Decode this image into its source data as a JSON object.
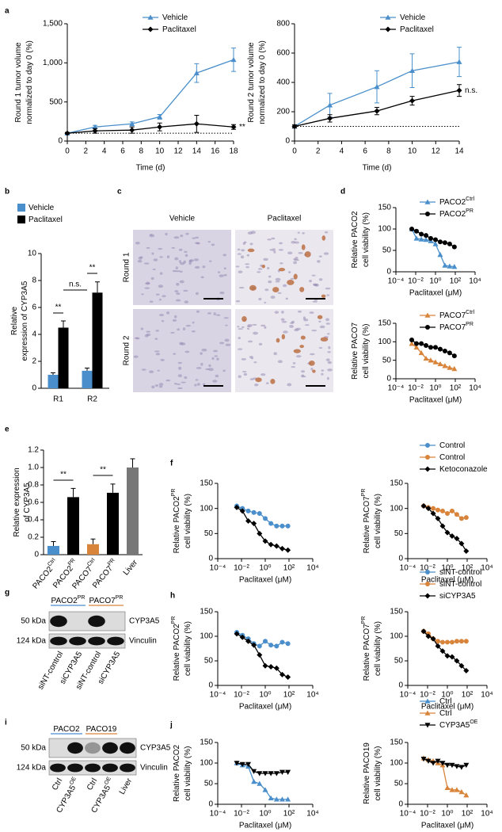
{
  "chart_data": [
    {
      "panel": "a",
      "type": "line",
      "x": [
        0,
        3,
        7,
        10,
        14,
        18
      ],
      "series": [
        {
          "color": "#4a8fcb",
          "marker": "triangle",
          "values": [
            100,
            180,
            220,
            310,
            870,
            1040
          ],
          "errors": [
            10,
            20,
            25,
            30,
            120,
            150
          ]
        },
        {
          "color": "#000000",
          "marker": "diamond",
          "values": [
            100,
            130,
            140,
            180,
            220,
            180
          ],
          "errors": [
            10,
            30,
            40,
            50,
            110,
            30
          ]
        }
      ],
      "legend": [
        {
          "name": "Vehicle",
          "color": "#4a8fcb",
          "marker": "triangle"
        },
        {
          "name": "Paclitaxel",
          "color": "#000000",
          "marker": "diamond"
        }
      ],
      "xlabel": "Time (d)",
      "ylabel": [
        "Round 1 tumor volume",
        "normalized to day 0 (%)"
      ],
      "xlim": [
        0,
        18
      ],
      "xticks": [
        0,
        2,
        4,
        6,
        8,
        10,
        12,
        14,
        16,
        18
      ],
      "ylim": [
        0,
        1500
      ],
      "yticks": [
        0,
        500,
        {
          "value": 1000,
          "label": "1,000"
        },
        {
          "value": 1500,
          "label": "1,500"
        }
      ],
      "reference_line": 100,
      "annotation": "**"
    },
    {
      "type": "line",
      "x": [
        0,
        3,
        7,
        10,
        14
      ],
      "series": [
        {
          "color": "#4a8fcb",
          "marker": "triangle",
          "values": [
            100,
            245,
            370,
            480,
            540
          ],
          "errors": [
            10,
            80,
            110,
            115,
            100
          ]
        },
        {
          "color": "#000000",
          "marker": "diamond",
          "values": [
            100,
            155,
            205,
            275,
            345
          ],
          "errors": [
            10,
            25,
            25,
            30,
            40
          ]
        }
      ],
      "legend": [
        {
          "name": "Vehicle",
          "color": "#4a8fcb",
          "marker": "triangle"
        },
        {
          "name": "Paclitaxel",
          "color": "#000000",
          "marker": "diamond"
        }
      ],
      "xlabel": "Time (d)",
      "ylabel": [
        "Round 2 tumor volume",
        "normalized to day 0 (%)"
      ],
      "xlim": [
        0,
        14
      ],
      "xticks": [
        0,
        2,
        4,
        6,
        8,
        10,
        12,
        14
      ],
      "ylim": [
        0,
        800
      ],
      "yticks": [
        0,
        200,
        400,
        600,
        800
      ],
      "reference_line": 100,
      "annotation": "n.s."
    },
    {
      "panel": "b",
      "type": "bar",
      "categories": [
        "R1",
        "R2"
      ],
      "series": [
        {
          "color": "#4a8fcb",
          "values": [
            1.0,
            1.3
          ],
          "errors": [
            0.15,
            0.2
          ]
        },
        {
          "color": "#000000",
          "values": [
            4.5,
            7.1
          ],
          "errors": [
            0.5,
            0.8
          ]
        }
      ],
      "legend": [
        {
          "name": "Vehicle",
          "color": "#4a8fcb"
        },
        {
          "name": "Paclitaxel",
          "color": "#000000"
        }
      ],
      "ylabel": [
        "Relative",
        "expression of CYP3A5"
      ],
      "ylim": [
        0,
        10
      ],
      "yticks": [
        0,
        2,
        4,
        6,
        8,
        10
      ],
      "annotations": [
        "**",
        "n.s.",
        "**"
      ]
    },
    {
      "panel": "d",
      "type": "line",
      "logx": true,
      "x": [
        0.004,
        0.012,
        0.037,
        0.11,
        0.33,
        1,
        3,
        9,
        27,
        81
      ],
      "series": [
        {
          "color": "#4a8fcb",
          "marker": "triangle",
          "values": [
            100,
            78,
            76,
            75,
            72,
            65,
            40,
            15,
            13,
            12
          ]
        },
        {
          "color": "#000000",
          "marker": "circle",
          "values": [
            100,
            95,
            88,
            85,
            78,
            75,
            70,
            68,
            65,
            58
          ]
        }
      ],
      "legend": [
        {
          "name": "PACO2",
          "sup": "Ctrl",
          "color": "#4a8fcb",
          "marker": "triangle"
        },
        {
          "name": "PACO2",
          "sup": "PR",
          "color": "#000000",
          "marker": "circle"
        }
      ],
      "xlabel": "Paclitaxel (μM)",
      "ylabel": [
        "Relative PACO2",
        "cell viability (%)"
      ],
      "xlim": [
        0.0001,
        10000
      ],
      "xticks": [
        {
          "value": 0.0001,
          "label": "10⁻⁴"
        },
        {
          "value": 0.01,
          "label": "10⁻²"
        },
        {
          "value": 1,
          "label": "10⁰"
        },
        {
          "value": 100,
          "label": "10²"
        },
        {
          "value": 10000,
          "label": "10⁴"
        }
      ],
      "ylim": [
        0,
        150
      ],
      "yticks": [
        0,
        50,
        100,
        150
      ]
    },
    {
      "type": "line",
      "logx": true,
      "x": [
        0.004,
        0.012,
        0.037,
        0.11,
        0.33,
        1,
        3,
        9,
        27,
        81
      ],
      "series": [
        {
          "color": "#d9843b",
          "marker": "triangle",
          "values": [
            95,
            85,
            70,
            55,
            50,
            45,
            40,
            35,
            30,
            27
          ]
        },
        {
          "color": "#000000",
          "marker": "circle",
          "values": [
            105,
            95,
            95,
            90,
            85,
            85,
            80,
            75,
            70,
            62
          ]
        }
      ],
      "legend": [
        {
          "name": "PACO7",
          "sup": "Ctrl",
          "color": "#d9843b",
          "marker": "triangle"
        },
        {
          "name": "PACO7",
          "sup": "PR",
          "color": "#000000",
          "marker": "circle"
        }
      ],
      "xlabel": "Paclitaxel (μM)",
      "ylabel": [
        "Relative PACO7",
        "cell viability (%)"
      ],
      "xlim": [
        0.0001,
        10000
      ],
      "xticks": [
        {
          "value": 0.0001,
          "label": "10⁻⁴"
        },
        {
          "value": 0.01,
          "label": "10⁻²"
        },
        {
          "value": 1,
          "label": "10⁰"
        },
        {
          "value": 100,
          "label": "10²"
        },
        {
          "value": 10000,
          "label": "10⁴"
        }
      ],
      "ylim": [
        0,
        150
      ],
      "yticks": [
        0,
        50,
        100,
        150
      ]
    },
    {
      "panel": "e",
      "type": "bar",
      "categories": [
        "PACO2",
        "PACO2",
        "PACO7",
        "PACO7",
        "Liver"
      ],
      "category_sups": [
        "Ctrl",
        "PR",
        "Ctrl",
        "PR",
        null
      ],
      "values": [
        0.1,
        0.66,
        0.12,
        0.71,
        1.0
      ],
      "errors": [
        0.05,
        0.1,
        0.06,
        0.1,
        0.1
      ],
      "colors": [
        "#4a8fcb",
        "#000000",
        "#d9843b",
        "#000000",
        "#777777"
      ],
      "ylabel": [
        "Relative expression",
        "of CYP3A5"
      ],
      "ylim": [
        0,
        1.2
      ],
      "yticks": [
        0,
        0.2,
        0.4,
        0.6,
        0.8,
        {
          "value": 1,
          "label": "1.0"
        },
        1.2
      ],
      "annotations": [
        "**",
        "**"
      ]
    },
    {
      "panel": "f",
      "type": "line",
      "logx": true,
      "x": [
        0.004,
        0.012,
        0.037,
        0.11,
        0.33,
        1,
        3,
        9,
        27,
        81
      ],
      "series": [
        {
          "color": "#4a8fcb",
          "marker": "circle",
          "values": [
            105,
            100,
            95,
            92,
            90,
            80,
            70,
            65,
            65,
            65
          ]
        },
        {
          "color": "#000000",
          "marker": "diamond",
          "values": [
            102,
            95,
            75,
            70,
            50,
            35,
            28,
            25,
            20,
            17
          ]
        }
      ],
      "xlabel": "Paclitaxel (μM)",
      "ylabel": [
        "Relative PACO2",
        "cell viability (%)"
      ],
      "ylabel_sup": "PR",
      "xlim": [
        0.0001,
        10000
      ],
      "xticks": [
        {
          "value": 0.0001,
          "label": "10⁻⁴"
        },
        {
          "value": 0.01,
          "label": "10⁻²"
        },
        {
          "value": 1,
          "label": "10⁰"
        },
        {
          "value": 100,
          "label": "10²"
        },
        {
          "value": 10000,
          "label": "10⁴"
        }
      ],
      "ylim": [
        0,
        150
      ],
      "yticks": [
        0,
        50,
        100,
        150
      ]
    },
    {
      "type": "line",
      "logx": true,
      "x": [
        0.004,
        0.012,
        0.037,
        0.11,
        0.33,
        1,
        3,
        9,
        27,
        81
      ],
      "series": [
        {
          "color": "#d9843b",
          "marker": "circle",
          "values": [
            105,
            102,
            100,
            97,
            95,
            90,
            95,
            88,
            80,
            82
          ]
        },
        {
          "color": "#000000",
          "marker": "diamond",
          "values": [
            105,
            100,
            90,
            80,
            65,
            52,
            45,
            40,
            30,
            15
          ]
        }
      ],
      "legend": [
        {
          "name": "Control",
          "color": "#4a8fcb",
          "marker": "circle"
        },
        {
          "name": "Control",
          "color": "#d9843b",
          "marker": "circle"
        },
        {
          "name": "Ketoconazole",
          "color": "#000000",
          "marker": "diamond"
        }
      ],
      "xlabel": "Paclitaxel (μM)",
      "ylabel": [
        "Relative PACO7",
        "cell viability (%)"
      ],
      "ylabel_sup": "PR",
      "xlim": [
        0.0001,
        10000
      ],
      "xticks": [
        {
          "value": 0.0001,
          "label": "10⁻⁴"
        },
        {
          "value": 0.01,
          "label": "10⁻²"
        },
        {
          "value": 1,
          "label": "10⁰"
        },
        {
          "value": 100,
          "label": "10²"
        },
        {
          "value": 10000,
          "label": "10⁴"
        }
      ],
      "ylim": [
        0,
        150
      ],
      "yticks": [
        0,
        50,
        100,
        150
      ]
    },
    {
      "panel": "h",
      "type": "line",
      "logx": true,
      "x": [
        0.004,
        0.012,
        0.037,
        0.11,
        0.33,
        1,
        3,
        9,
        27,
        81
      ],
      "series": [
        {
          "color": "#4a8fcb",
          "marker": "circle",
          "values": [
            108,
            102,
            95,
            85,
            80,
            90,
            82,
            80,
            88,
            85
          ]
        },
        {
          "color": "#000000",
          "marker": "diamond",
          "values": [
            105,
            98,
            90,
            82,
            62,
            40,
            38,
            35,
            22,
            17
          ]
        }
      ],
      "xlabel": "Paclitaxel (μM)",
      "ylabel": [
        "Relative PACO2",
        "cell viability (%)"
      ],
      "ylabel_sup": "PR",
      "xlim": [
        0.0001,
        10000
      ],
      "xticks": [
        {
          "value": 0.0001,
          "label": "10⁻⁴"
        },
        {
          "value": 0.01,
          "label": "10⁻²"
        },
        {
          "value": 1,
          "label": "10⁰"
        },
        {
          "value": 100,
          "label": "10²"
        },
        {
          "value": 10000,
          "label": "10⁴"
        }
      ],
      "ylim": [
        0,
        150
      ],
      "yticks": [
        0,
        50,
        100,
        150
      ]
    },
    {
      "type": "line",
      "logx": true,
      "x": [
        0.004,
        0.012,
        0.037,
        0.11,
        0.33,
        1,
        3,
        9,
        27,
        81
      ],
      "series": [
        {
          "color": "#d9843b",
          "marker": "circle",
          "values": [
            110,
            105,
            95,
            90,
            88,
            88,
            88,
            90,
            90,
            90
          ]
        },
        {
          "color": "#000000",
          "marker": "diamond",
          "values": [
            110,
            100,
            95,
            80,
            70,
            60,
            58,
            50,
            40,
            30
          ]
        }
      ],
      "legend": [
        {
          "name": "siNT-control",
          "color": "#4a8fcb",
          "marker": "circle"
        },
        {
          "name": "siNT-control",
          "color": "#d9843b",
          "marker": "circle"
        },
        {
          "name": "siCYP3A5",
          "color": "#000000",
          "marker": "diamond"
        }
      ],
      "xlabel": "Paclitaxel (μM)",
      "ylabel": [
        "Relative PACO7",
        "cell viability (%)"
      ],
      "ylabel_sup": "PR",
      "xlim": [
        0.0001,
        10000
      ],
      "xticks": [
        {
          "value": 0.0001,
          "label": "10⁻⁴"
        },
        {
          "value": 0.01,
          "label": "10⁻²"
        },
        {
          "value": 1,
          "label": "10⁰"
        },
        {
          "value": 100,
          "label": "10²"
        },
        {
          "value": 10000,
          "label": "10⁴"
        }
      ],
      "ylim": [
        0,
        150
      ],
      "yticks": [
        0,
        50,
        100,
        150
      ]
    },
    {
      "panel": "j",
      "type": "line",
      "logx": true,
      "x": [
        0.004,
        0.012,
        0.037,
        0.11,
        0.33,
        1,
        3,
        9,
        27,
        81
      ],
      "series": [
        {
          "color": "#4a8fcb",
          "marker": "triangle",
          "values": [
            100,
            95,
            92,
            55,
            50,
            35,
            15,
            12,
            12,
            12
          ]
        },
        {
          "color": "#000000",
          "marker": "down-triangle",
          "values": [
            100,
            97,
            97,
            80,
            75,
            75,
            75,
            75,
            78,
            78
          ]
        }
      ],
      "xlabel": "Paclitaxel (μM)",
      "ylabel": [
        "Relative PACO2",
        "cell viability (%)"
      ],
      "xlim": [
        0.0001,
        10000
      ],
      "xticks": [
        {
          "value": 0.0001,
          "label": "10⁻⁴"
        },
        {
          "value": 0.01,
          "label": "10⁻²"
        },
        {
          "value": 1,
          "label": "10⁰"
        },
        {
          "value": 100,
          "label": "10²"
        },
        {
          "value": 10000,
          "label": "10⁴"
        }
      ],
      "ylim": [
        0,
        150
      ],
      "yticks": [
        0,
        50,
        100,
        150
      ]
    },
    {
      "type": "line",
      "logx": true,
      "x": [
        0.004,
        0.012,
        0.037,
        0.11,
        0.33,
        1,
        3,
        9,
        27,
        81
      ],
      "series": [
        {
          "color": "#d9843b",
          "marker": "triangle",
          "values": [
            112,
            108,
            105,
            100,
            95,
            40,
            35,
            35,
            30,
            22
          ]
        },
        {
          "color": "#000000",
          "marker": "down-triangle",
          "values": [
            110,
            105,
            100,
            105,
            100,
            95,
            95,
            92,
            90,
            95
          ]
        }
      ],
      "legend": [
        {
          "name": "Ctrl",
          "color": "#4a8fcb",
          "marker": "triangle"
        },
        {
          "name": "Ctrl",
          "color": "#d9843b",
          "marker": "triangle"
        },
        {
          "name": "CYP3A5",
          "sup": "OE",
          "color": "#000000",
          "marker": "down-triangle"
        }
      ],
      "xlabel": "Paclitaxel (μM)",
      "ylabel": [
        "Relative PACO19",
        "cell viability (%)"
      ],
      "xlim": [
        0.0001,
        10000
      ],
      "xticks": [
        {
          "value": 0.0001,
          "label": "10⁻⁴"
        },
        {
          "value": 0.01,
          "label": "10⁻²"
        },
        {
          "value": 1,
          "label": "10⁰"
        },
        {
          "value": 100,
          "label": "10²"
        },
        {
          "value": 10000,
          "label": "10⁴"
        }
      ],
      "ylim": [
        0,
        150
      ],
      "yticks": [
        0,
        50,
        100,
        150
      ]
    }
  ],
  "panel_c": {
    "panel": "c",
    "columns": [
      "Vehicle",
      "Paclitaxel"
    ],
    "rows": [
      "Round 1",
      "Round 2"
    ]
  },
  "blots": [
    {
      "panel": "g",
      "groups": [
        {
          "name": "PACO2",
          "sup": "PR",
          "color": "#4a8fcb"
        },
        {
          "name": "PACO7",
          "sup": "PR",
          "color": "#d9843b"
        }
      ],
      "sizes": [
        "50 kDa",
        "124 kDa"
      ],
      "bands": [
        "CYP3A5",
        "Vinculin"
      ],
      "lanes": [
        "siNT-control",
        "siCYP3A5",
        "siNT-control",
        "siCYP3A5"
      ]
    },
    {
      "panel": "i",
      "groups": [
        {
          "name": "PACO2",
          "color": "#4a8fcb"
        },
        {
          "name": "PACO19",
          "color": "#d9843b"
        }
      ],
      "sizes": [
        "50 kDa",
        "124 kDa"
      ],
      "bands": [
        "CYP3A5",
        "Vinculin"
      ],
      "lanes": [
        "Ctrl",
        "CYP3A5",
        "Ctrl",
        "CYP3A5",
        "Liver"
      ],
      "lane_sups": [
        null,
        "OE",
        null,
        "OE",
        null
      ]
    }
  ]
}
